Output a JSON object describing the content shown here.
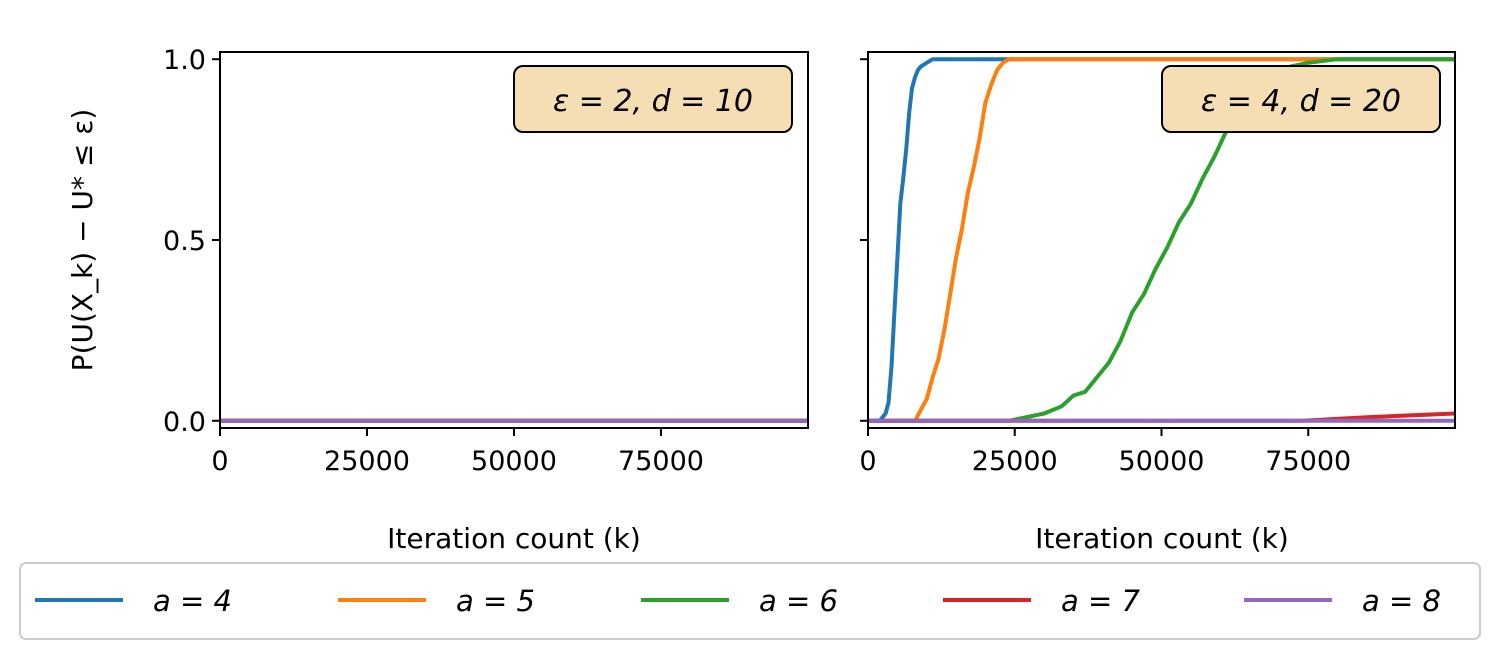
{
  "chart_data": [
    {
      "type": "line",
      "annotation": "ε = 2, d = 10",
      "xlabel": "Iteration count (k)",
      "ylabel": "P(U(X_k) − U* ≤ ε)",
      "xlim": [
        0,
        100000
      ],
      "ylim": [
        -0.02,
        1.02
      ],
      "xticks": [
        "0",
        "25000",
        "50000",
        "75000"
      ],
      "yticks": [
        "0.0",
        "0.5",
        "1.0"
      ],
      "grid": false,
      "series": [
        {
          "name": "a = 4",
          "color": "#1f77b4",
          "x": [
            0,
            100000
          ],
          "y": [
            0.0,
            0.0
          ]
        },
        {
          "name": "a = 5",
          "color": "#ff7f0e",
          "x": [
            0,
            100000
          ],
          "y": [
            0.0,
            0.0
          ]
        },
        {
          "name": "a = 6",
          "color": "#2ca02c",
          "x": [
            0,
            100000
          ],
          "y": [
            0.0,
            0.0
          ]
        },
        {
          "name": "a = 7",
          "color": "#d62728",
          "x": [
            0,
            100000
          ],
          "y": [
            0.0,
            0.0
          ]
        },
        {
          "name": "a = 8",
          "color": "#9467bd",
          "x": [
            0,
            100000
          ],
          "y": [
            0.0,
            0.0
          ]
        }
      ]
    },
    {
      "type": "line",
      "annotation": "ε = 4, d = 20",
      "xlabel": "Iteration count (k)",
      "xlim": [
        0,
        100000
      ],
      "ylim": [
        -0.02,
        1.02
      ],
      "xticks": [
        "0",
        "25000",
        "50000",
        "75000"
      ],
      "grid": false,
      "series": [
        {
          "name": "a = 4",
          "color": "#1f77b4",
          "x": [
            0,
            2000,
            3000,
            3500,
            4000,
            4500,
            5000,
            5500,
            6000,
            6500,
            7000,
            7500,
            8000,
            8500,
            9000,
            10000,
            11000,
            100000
          ],
          "y": [
            0.0,
            0.0,
            0.02,
            0.05,
            0.15,
            0.3,
            0.45,
            0.6,
            0.67,
            0.75,
            0.85,
            0.92,
            0.95,
            0.97,
            0.98,
            0.99,
            1.0,
            1.0
          ]
        },
        {
          "name": "a = 5",
          "color": "#ff7f0e",
          "x": [
            0,
            8000,
            9000,
            10000,
            11000,
            12000,
            13000,
            14000,
            15000,
            16000,
            17000,
            18000,
            19000,
            20000,
            21000,
            22000,
            23000,
            24000,
            100000
          ],
          "y": [
            0.0,
            0.0,
            0.03,
            0.06,
            0.12,
            0.17,
            0.25,
            0.35,
            0.45,
            0.53,
            0.63,
            0.7,
            0.78,
            0.88,
            0.93,
            0.97,
            0.99,
            1.0,
            1.0
          ]
        },
        {
          "name": "a = 6",
          "color": "#2ca02c",
          "x": [
            0,
            24000,
            27000,
            30000,
            33000,
            35000,
            37000,
            39000,
            41000,
            43000,
            45000,
            47000,
            49000,
            51000,
            53000,
            55000,
            57000,
            59000,
            61000,
            63000,
            65000,
            67000,
            69000,
            72000,
            75000,
            80000,
            100000
          ],
          "y": [
            0.0,
            0.0,
            0.01,
            0.02,
            0.04,
            0.07,
            0.08,
            0.12,
            0.16,
            0.22,
            0.3,
            0.35,
            0.42,
            0.48,
            0.55,
            0.6,
            0.67,
            0.73,
            0.8,
            0.85,
            0.9,
            0.93,
            0.96,
            0.98,
            0.99,
            1.0,
            1.0
          ]
        },
        {
          "name": "a = 7",
          "color": "#d62728",
          "x": [
            0,
            74000,
            85000,
            100000
          ],
          "y": [
            0.0,
            0.0,
            0.01,
            0.02
          ]
        },
        {
          "name": "a = 8",
          "color": "#9467bd",
          "x": [
            0,
            100000
          ],
          "y": [
            0.0,
            0.0
          ]
        }
      ]
    }
  ],
  "legend": {
    "placement": "bottom",
    "entries": [
      {
        "label": "a = 4",
        "color": "#1f77b4"
      },
      {
        "label": "a = 5",
        "color": "#ff7f0e"
      },
      {
        "label": "a = 6",
        "color": "#2ca02c"
      },
      {
        "label": "a = 7",
        "color": "#d62728"
      },
      {
        "label": "a = 8",
        "color": "#9467bd"
      }
    ]
  },
  "annotation_box_color": "#f5deb3"
}
